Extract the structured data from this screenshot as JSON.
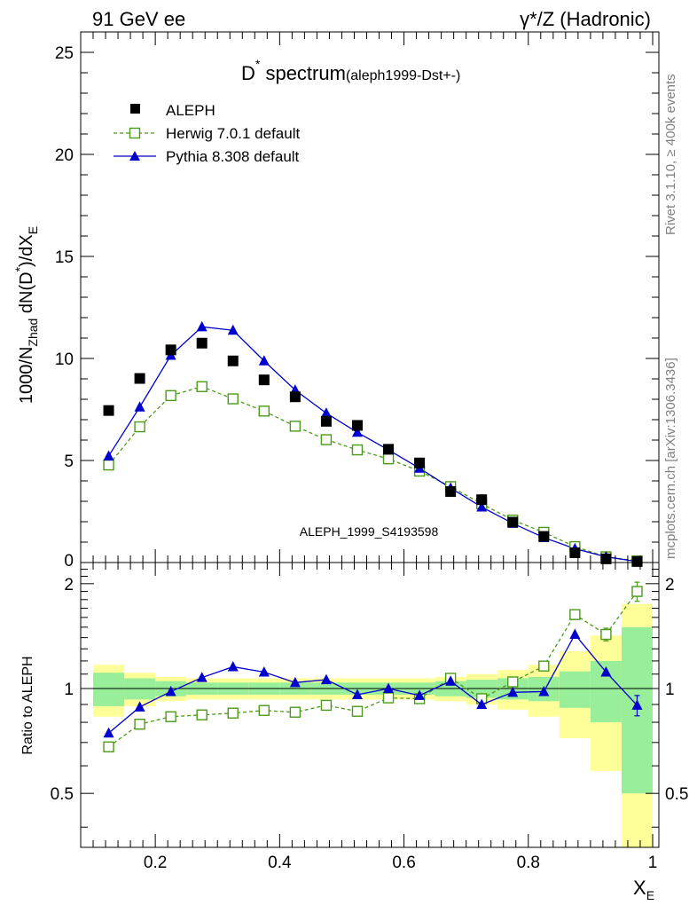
{
  "header": {
    "left": "91 GeV ee",
    "right": "γ*/Z (Hadronic)"
  },
  "side_labels": {
    "top": "Rivet 3.1.10, ≥ 400k events",
    "bottom": "mcplots.cern.ch [arXiv:1306.3436]"
  },
  "watermark": "ALEPH_1999_S4193598",
  "chart_data": [
    {
      "type": "scatter",
      "panel": "main",
      "title_main": "D",
      "title_sup": "*",
      "title_word": " spectrum",
      "title_small": "(aleph1999-Dst+-)",
      "ylabel": "1000/N_Zhad dN(D*)/dX_E",
      "ylabel_parts": {
        "a": "1000/N",
        "a_sub": "Zhad",
        "b": " dN(D",
        "b_sup": "*",
        "c": ")/dX",
        "c_sub": "E"
      },
      "xlim": [
        0.08,
        1.01
      ],
      "ylim": [
        0,
        26
      ],
      "yticks": [
        "5",
        "10",
        "15",
        "20",
        "25"
      ],
      "ytick_values": [
        5,
        10,
        15,
        20,
        25
      ],
      "ytick_zero": "0",
      "x": [
        0.125,
        0.175,
        0.225,
        0.275,
        0.325,
        0.375,
        0.425,
        0.475,
        0.525,
        0.575,
        0.625,
        0.675,
        0.725,
        0.775,
        0.825,
        0.875,
        0.925,
        0.975
      ],
      "bin_edges": [
        0.1,
        0.15,
        0.2,
        0.25,
        0.3,
        0.35,
        0.4,
        0.45,
        0.5,
        0.55,
        0.6,
        0.65,
        0.7,
        0.75,
        0.8,
        0.85,
        0.9,
        0.95,
        1.0
      ],
      "series": [
        {
          "name": "ALEPH",
          "style": "square-filled",
          "color": "#000000",
          "values": [
            7.45,
            9.02,
            10.42,
            10.75,
            9.88,
            8.95,
            8.12,
            6.92,
            6.72,
            5.55,
            4.88,
            3.48,
            3.08,
            1.98,
            1.28,
            0.48,
            0.18,
            0.05
          ]
        },
        {
          "name": "Herwig 7.0.1 default",
          "style": "square-open-dashed",
          "color": "#4c9a1a",
          "values": [
            4.78,
            6.65,
            8.18,
            8.62,
            8.02,
            7.42,
            6.68,
            6.02,
            5.52,
            5.08,
            4.48,
            3.72,
            2.88,
            2.08,
            1.48,
            0.78,
            0.28,
            0.08
          ]
        },
        {
          "name": "Pythia 8.308 default",
          "style": "triangle-filled-solid",
          "color": "#0000cc",
          "values": [
            5.22,
            7.62,
            10.15,
            11.55,
            11.38,
            9.88,
            8.45,
            7.32,
            6.38,
            5.52,
            4.62,
            3.65,
            2.72,
            1.92,
            1.22,
            0.68,
            0.28,
            0.05
          ]
        }
      ]
    },
    {
      "type": "scatter",
      "panel": "ratio",
      "ylabel": "Ratio to ALEPH",
      "xlabel": "X",
      "xlabel_sub": "E",
      "xlim": [
        0.08,
        1.01
      ],
      "ylim": [
        0.35,
        2.3
      ],
      "xticks": [
        "0.2",
        "0.4",
        "0.6",
        "0.8",
        "1"
      ],
      "xtick_values": [
        0.2,
        0.4,
        0.6,
        0.8,
        1.0
      ],
      "yticks": [
        "0.5",
        "1",
        "2"
      ],
      "ytick_values": [
        0.5,
        1.0,
        2.0
      ],
      "yticks_right": [
        "0.5",
        "1",
        "2"
      ],
      "bands": {
        "green_half_width": [
          0.11,
          0.07,
          0.05,
          0.04,
          0.04,
          0.04,
          0.04,
          0.04,
          0.04,
          0.04,
          0.04,
          0.05,
          0.06,
          0.07,
          0.08,
          0.12,
          0.2,
          0.5
        ],
        "yellow_half_width": [
          0.17,
          0.11,
          0.08,
          0.07,
          0.07,
          0.07,
          0.07,
          0.07,
          0.07,
          0.07,
          0.07,
          0.08,
          0.1,
          0.13,
          0.17,
          0.28,
          0.42,
          0.75
        ]
      },
      "series": [
        {
          "name": "Herwig 7.0.1 default",
          "style": "square-open-dashed",
          "color": "#4c9a1a",
          "values": [
            0.68,
            0.79,
            0.83,
            0.84,
            0.85,
            0.865,
            0.855,
            0.895,
            0.86,
            0.94,
            0.935,
            1.07,
            0.935,
            1.045,
            1.16,
            1.63,
            1.43,
            1.9
          ],
          "errors": [
            0,
            0,
            0,
            0,
            0,
            0,
            0,
            0,
            0,
            0,
            0,
            0,
            0,
            0,
            0,
            0.05,
            0.06,
            0.12
          ]
        },
        {
          "name": "Pythia 8.308 default",
          "style": "triangle-filled-solid",
          "color": "#0000cc",
          "values": [
            0.745,
            0.885,
            0.98,
            1.075,
            1.155,
            1.115,
            1.04,
            1.06,
            0.96,
            1.0,
            0.955,
            1.05,
            0.9,
            0.975,
            0.98,
            1.43,
            1.115,
            0.895
          ],
          "errors": [
            0,
            0,
            0,
            0,
            0,
            0,
            0,
            0,
            0,
            0,
            0,
            0,
            0,
            0,
            0,
            0,
            0,
            0.06
          ]
        }
      ]
    }
  ],
  "colors": {
    "green_band": "#99ee99",
    "yellow_band": "#ffff99",
    "herwig": "#4c9a1a",
    "pythia": "#0000cc",
    "data": "#000000",
    "side_text": "#808080",
    "watermark": "#a0a0a0"
  }
}
